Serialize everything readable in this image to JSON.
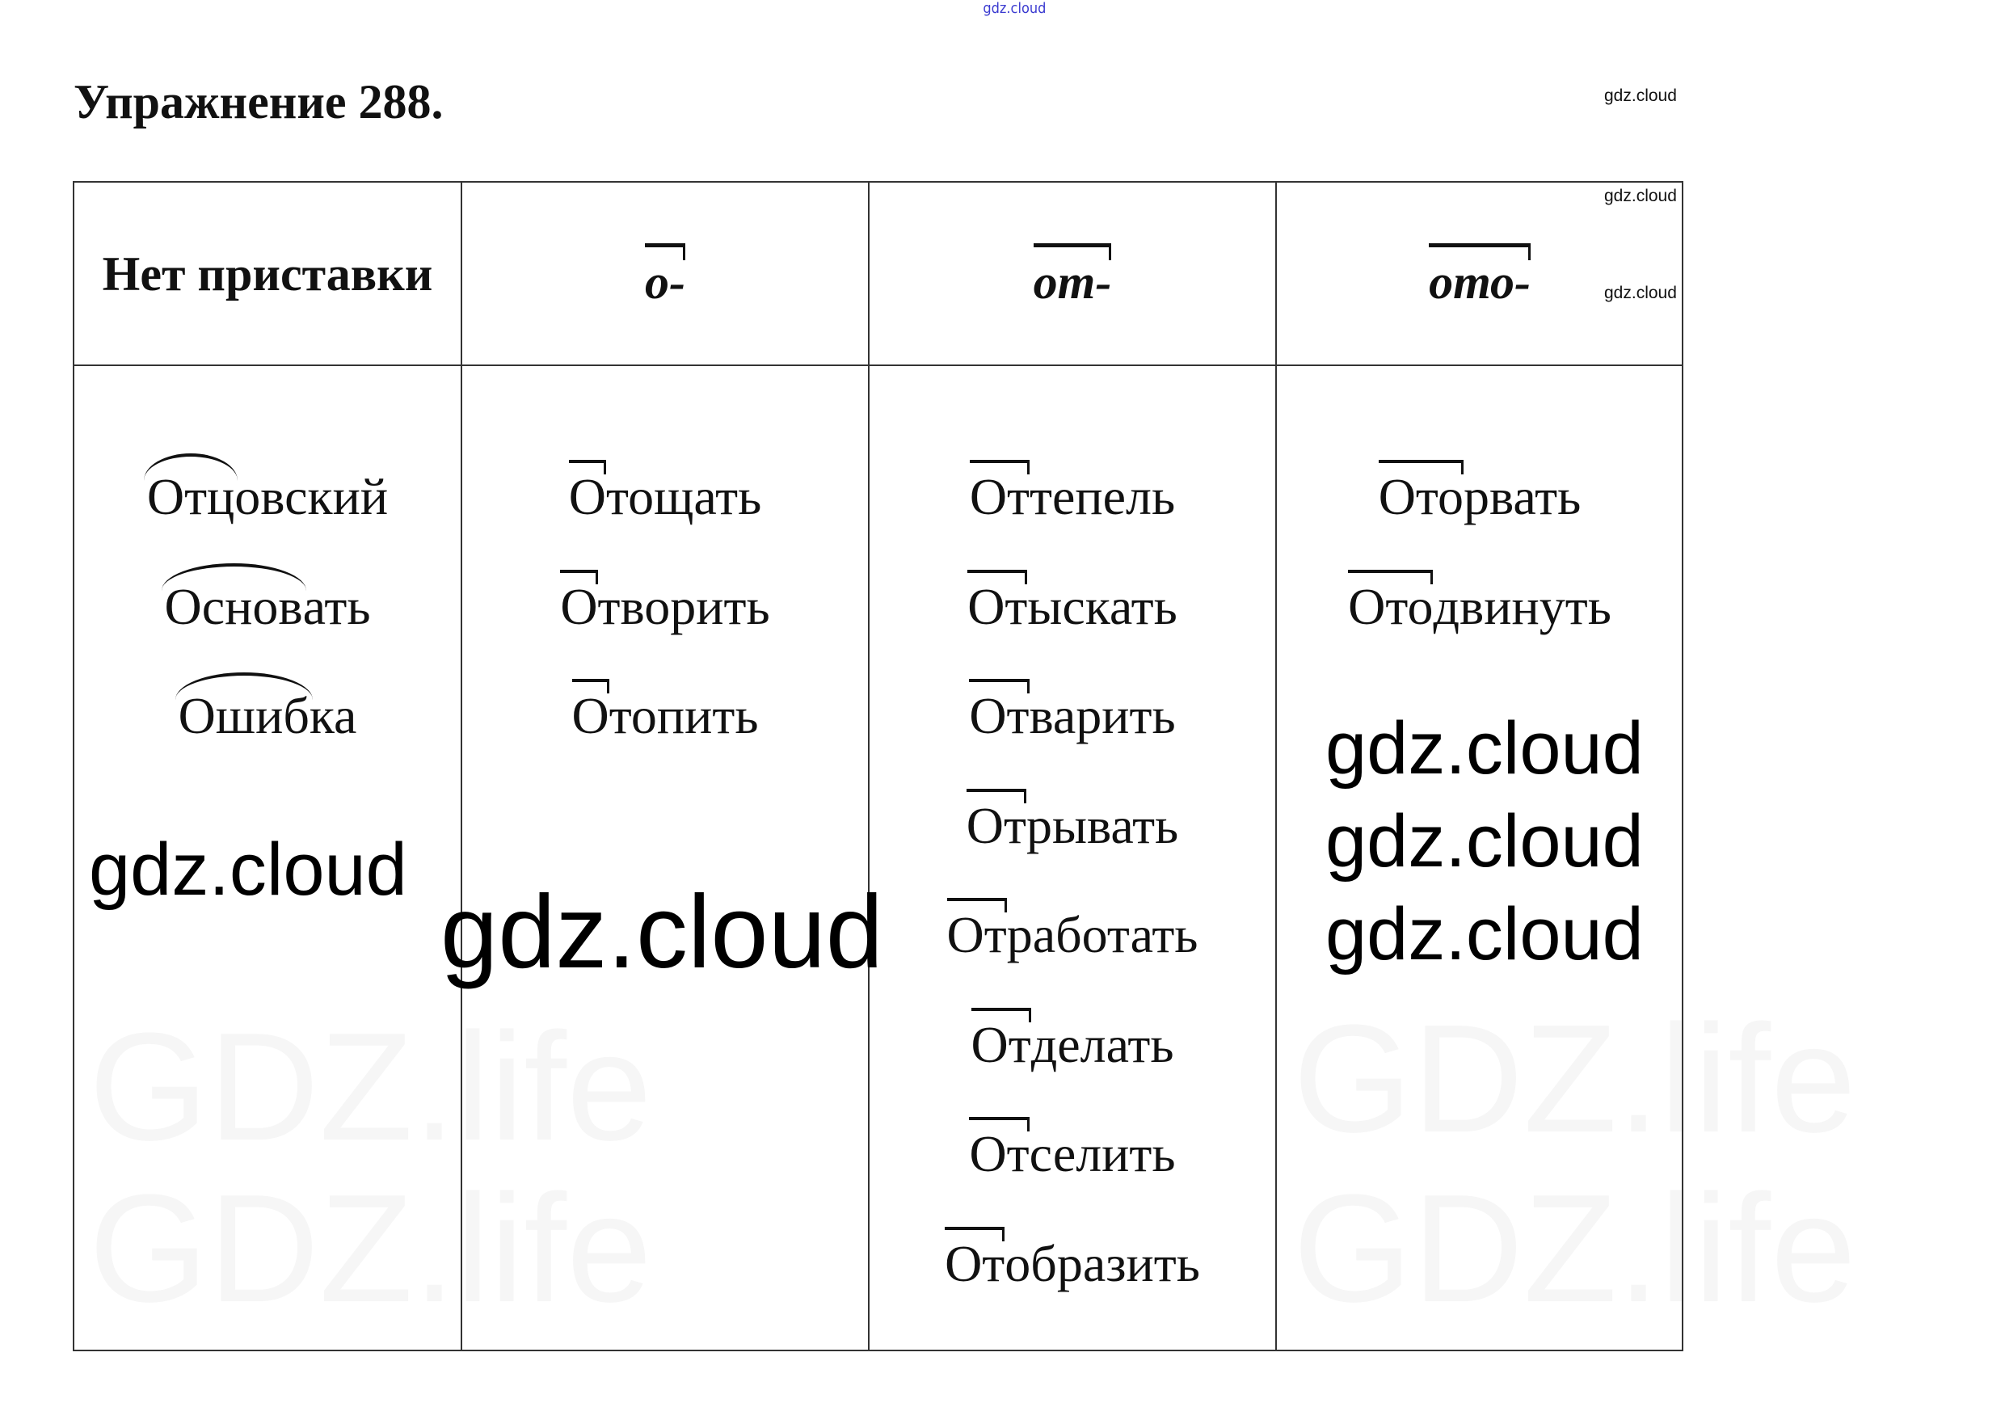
{
  "watermark_top": "gdz.cloud",
  "title": "Упражнение 288.",
  "watermarks": {
    "text": "gdz.cloud",
    "faint_text": "GDZ.life"
  },
  "columns": [
    {
      "header": "Нет приставки",
      "mark": "arc",
      "words": [
        {
          "marked": "Отц",
          "rest": "овский"
        },
        {
          "marked": "Основ",
          "rest": "ать"
        },
        {
          "marked": "Ошиб",
          "rest": "ка"
        }
      ]
    },
    {
      "header": "о-",
      "mark": "bar",
      "words": [
        {
          "marked": "О",
          "rest": "тощать"
        },
        {
          "marked": "О",
          "rest": "творить"
        },
        {
          "marked": "О",
          "rest": "топить"
        }
      ]
    },
    {
      "header": "от-",
      "mark": "bar",
      "words": [
        {
          "marked": "От",
          "rest": "тепель"
        },
        {
          "marked": "От",
          "rest": "ыскать"
        },
        {
          "marked": "От",
          "rest": "варить"
        },
        {
          "marked": "От",
          "rest": "рывать"
        },
        {
          "marked": "От",
          "rest": "работать"
        },
        {
          "marked": "От",
          "rest": "делать"
        },
        {
          "marked": "От",
          "rest": "селить"
        },
        {
          "marked": "От",
          "rest": "образить"
        }
      ]
    },
    {
      "header": "ото-",
      "mark": "bar",
      "words": [
        {
          "marked": "Ото",
          "rest": "рвать"
        },
        {
          "marked": "Ото",
          "rest": "двинуть"
        }
      ]
    }
  ]
}
